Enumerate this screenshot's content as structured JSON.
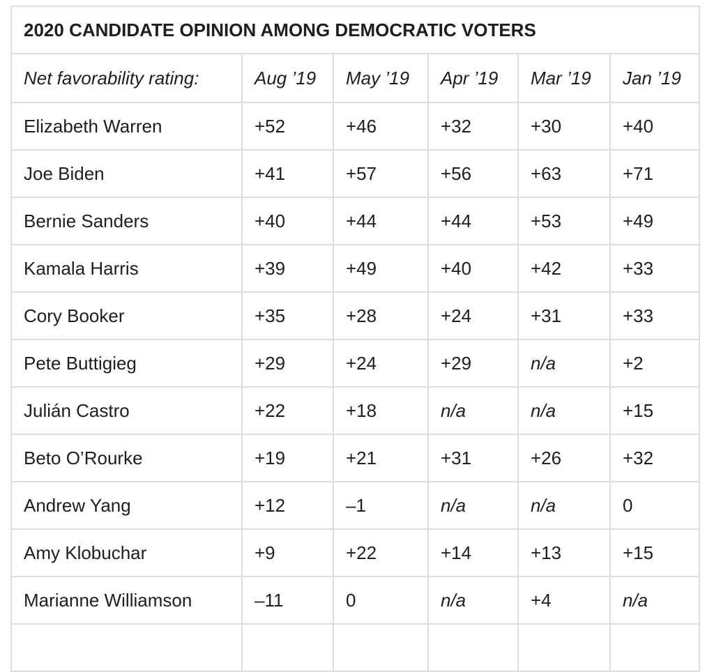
{
  "title": "2020 CANDIDATE OPINION AMONG DEMOCRATIC VOTERS",
  "header": {
    "label": "Net favorability rating:",
    "columns": [
      "Aug ’19",
      "May ’19",
      "Apr ’19",
      "Mar ’19",
      "Jan ’19"
    ]
  },
  "rows": [
    {
      "name": "Elizabeth Warren",
      "values": [
        "+52",
        "+46",
        "+32",
        "+30",
        "+40"
      ]
    },
    {
      "name": "Joe Biden",
      "values": [
        "+41",
        "+57",
        "+56",
        "+63",
        "+71"
      ]
    },
    {
      "name": "Bernie Sanders",
      "values": [
        "+40",
        "+44",
        "+44",
        "+53",
        "+49"
      ]
    },
    {
      "name": "Kamala Harris",
      "values": [
        "+39",
        "+49",
        "+40",
        "+42",
        "+33"
      ]
    },
    {
      "name": "Cory Booker",
      "values": [
        "+35",
        "+28",
        "+24",
        "+31",
        "+33"
      ]
    },
    {
      "name": "Pete Buttigieg",
      "values": [
        "+29",
        "+24",
        "+29",
        "n/a",
        "+2"
      ]
    },
    {
      "name": "Julián Castro",
      "values": [
        "+22",
        "+18",
        "n/a",
        "n/a",
        "+15"
      ]
    },
    {
      "name": "Beto O’Rourke",
      "values": [
        "+19",
        "+21",
        "+31",
        "+26",
        "+32"
      ]
    },
    {
      "name": "Andrew Yang",
      "values": [
        "+12",
        "–1",
        "n/a",
        "n/a",
        "0"
      ]
    },
    {
      "name": "Amy Klobuchar",
      "values": [
        "+9",
        "+22",
        "+14",
        "+13",
        "+15"
      ]
    },
    {
      "name": "Marianne Williamson",
      "values": [
        "–11",
        "0",
        "n/a",
        "+4",
        "n/a"
      ]
    }
  ]
}
